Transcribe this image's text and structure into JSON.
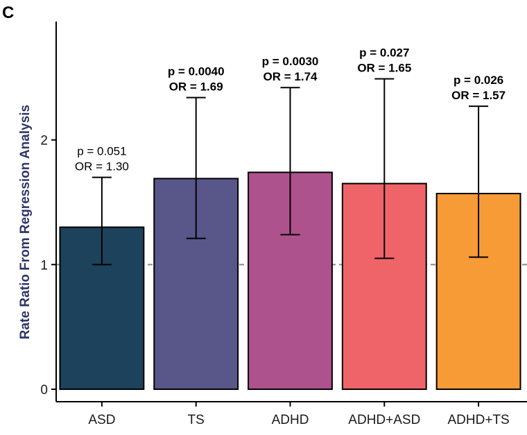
{
  "panel_label": "C",
  "chart_data": {
    "type": "bar",
    "title": "",
    "xlabel": "",
    "ylabel": "Rate Ratio From Regression Analysis",
    "ylim": [
      -0.1,
      2.95
    ],
    "yticks": [
      0,
      1,
      2
    ],
    "ytick_labels": [
      "0",
      "1",
      "2"
    ],
    "reference_line": 1,
    "grid": false,
    "categories": [
      "ASD",
      "TS",
      "ADHD",
      "ADHD+ASD",
      "ADHD+TS"
    ],
    "values": [
      1.3,
      1.69,
      1.74,
      1.65,
      1.57
    ],
    "ci_lower": [
      1.0,
      1.21,
      1.24,
      1.05,
      1.06
    ],
    "ci_upper": [
      1.7,
      2.34,
      2.42,
      2.49,
      2.27
    ],
    "colors": [
      "#1c425c",
      "#59568a",
      "#ad528c",
      "#ef6469",
      "#f79b36"
    ],
    "annotations": [
      {
        "p": "p = 0.051",
        "or": "OR = 1.30",
        "bold": false
      },
      {
        "p": "p = 0.0040",
        "or": "OR = 1.69",
        "bold": true
      },
      {
        "p": "p = 0.0030",
        "or": "OR = 1.74",
        "bold": true
      },
      {
        "p": "p = 0.027",
        "or": "OR = 1.65",
        "bold": true
      },
      {
        "p": "p = 0.026",
        "or": "OR = 1.57",
        "bold": true
      }
    ],
    "axis_title_color": "#2d3568",
    "reference_line_color": "#888888"
  }
}
